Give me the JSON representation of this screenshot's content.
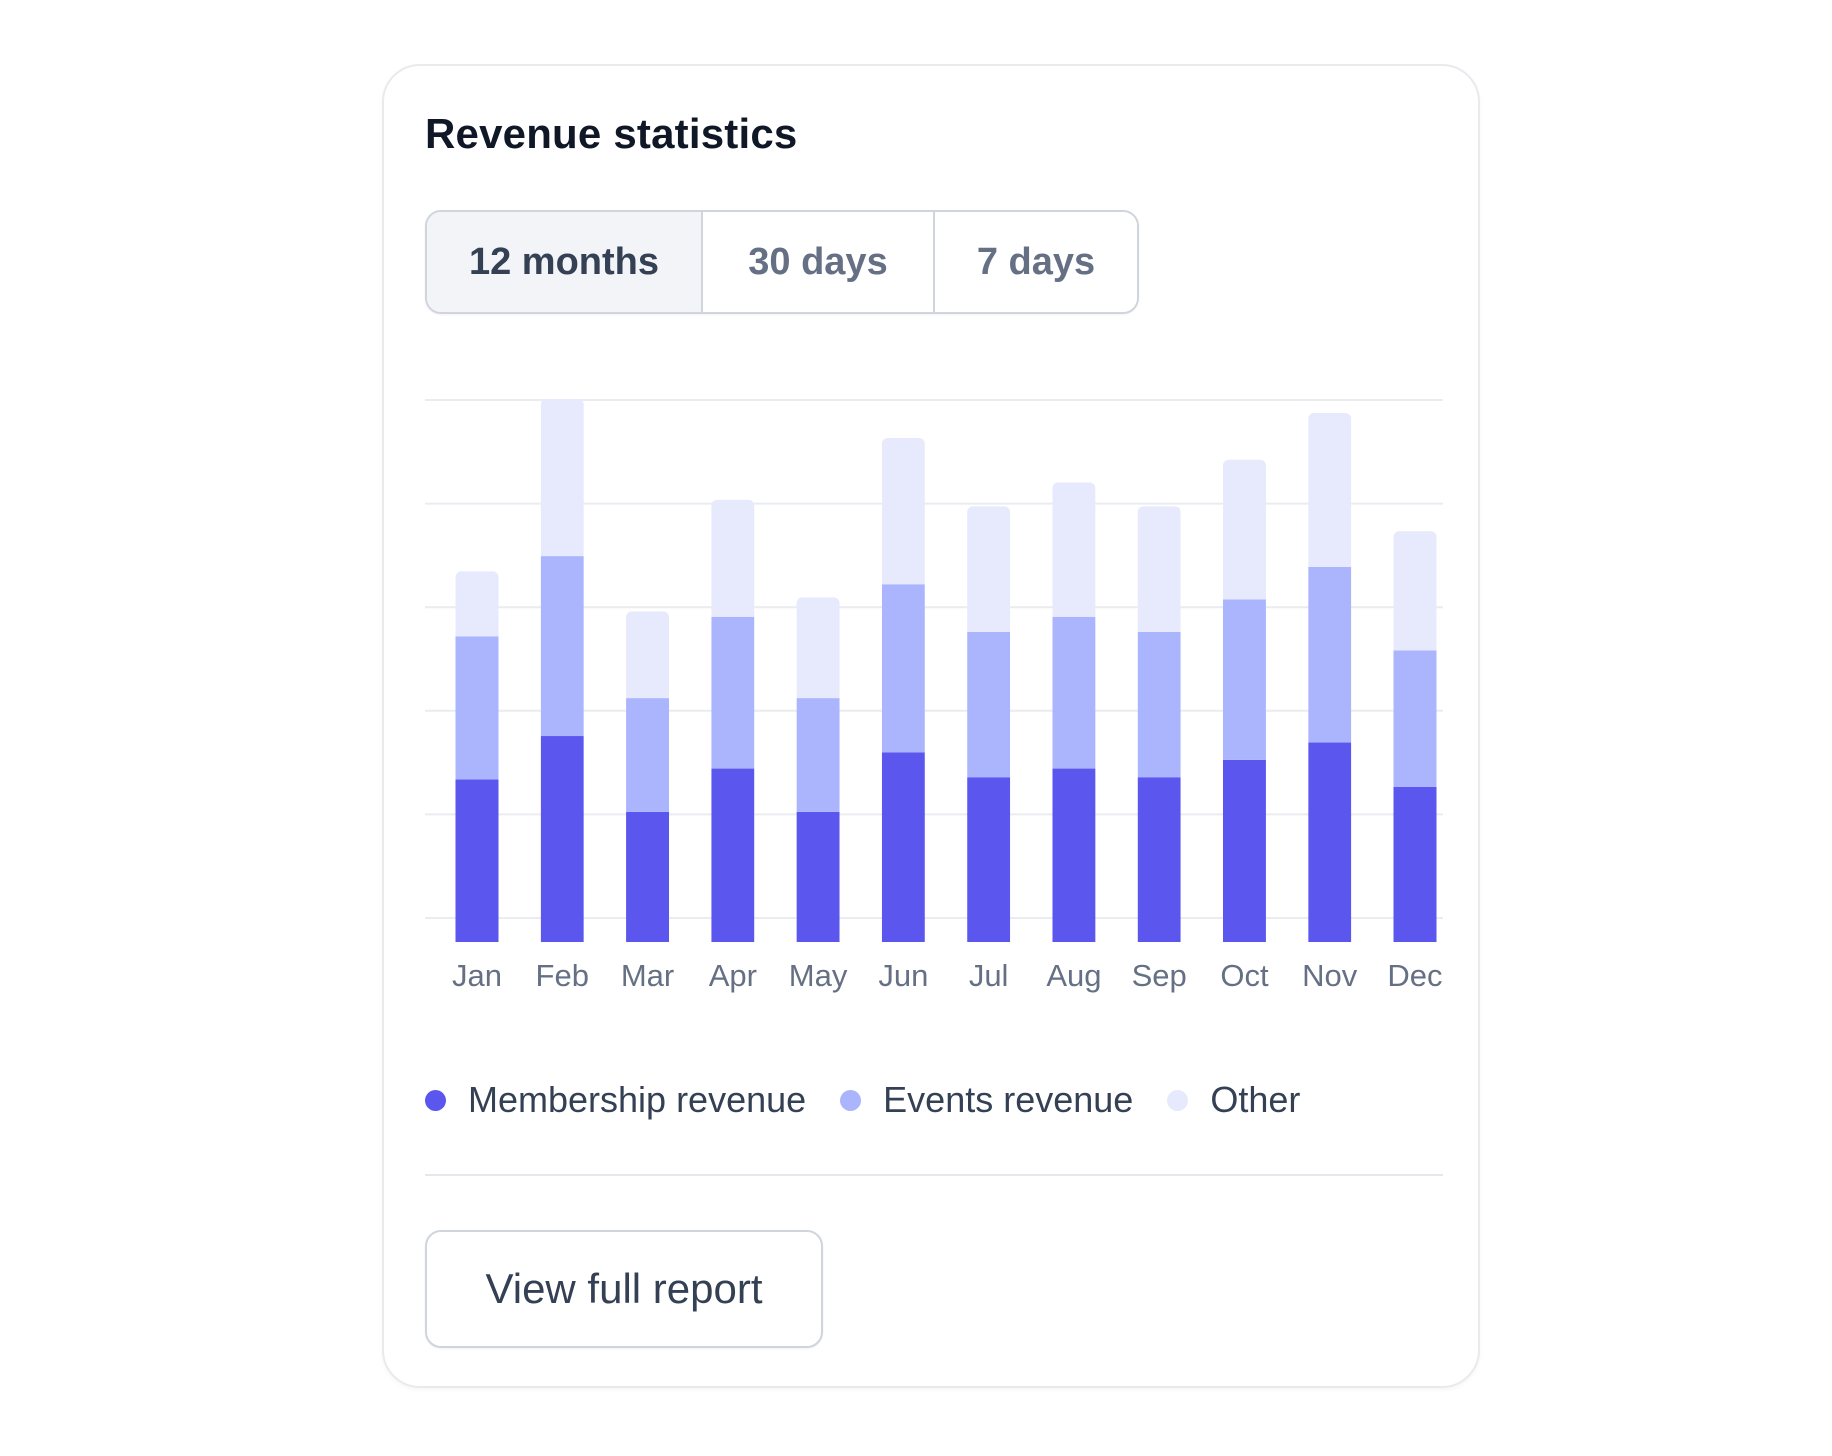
{
  "card": {
    "title": "Revenue statistics",
    "tabs": [
      {
        "label": "12 months",
        "active": true
      },
      {
        "label": "30 days",
        "active": false
      },
      {
        "label": "7 days",
        "active": false
      }
    ],
    "button_label": "View full report"
  },
  "chart_data": {
    "type": "bar",
    "stacked": true,
    "categories": [
      "Jan",
      "Feb",
      "Mar",
      "Apr",
      "May",
      "Jun",
      "Jul",
      "Aug",
      "Sep",
      "Oct",
      "Nov",
      "Dec"
    ],
    "series": [
      {
        "name": "Membership revenue",
        "color": "#5a56ee",
        "values": [
          1.5,
          1.9,
          1.2,
          1.6,
          1.2,
          1.75,
          1.52,
          1.6,
          1.52,
          1.68,
          1.84,
          1.43
        ]
      },
      {
        "name": "Events revenue",
        "color": "#aab5fd",
        "values": [
          1.32,
          1.66,
          1.05,
          1.4,
          1.05,
          1.55,
          1.34,
          1.4,
          1.34,
          1.48,
          1.62,
          1.26
        ]
      },
      {
        "name": "Other",
        "color": "#e7e9fc",
        "values": [
          0.6,
          1.45,
          0.8,
          1.08,
          0.93,
          1.35,
          1.16,
          1.24,
          1.16,
          1.29,
          1.42,
          1.1
        ]
      }
    ],
    "ylim": [
      0,
      5
    ],
    "grid": true,
    "legend_position": "bottom-left"
  }
}
